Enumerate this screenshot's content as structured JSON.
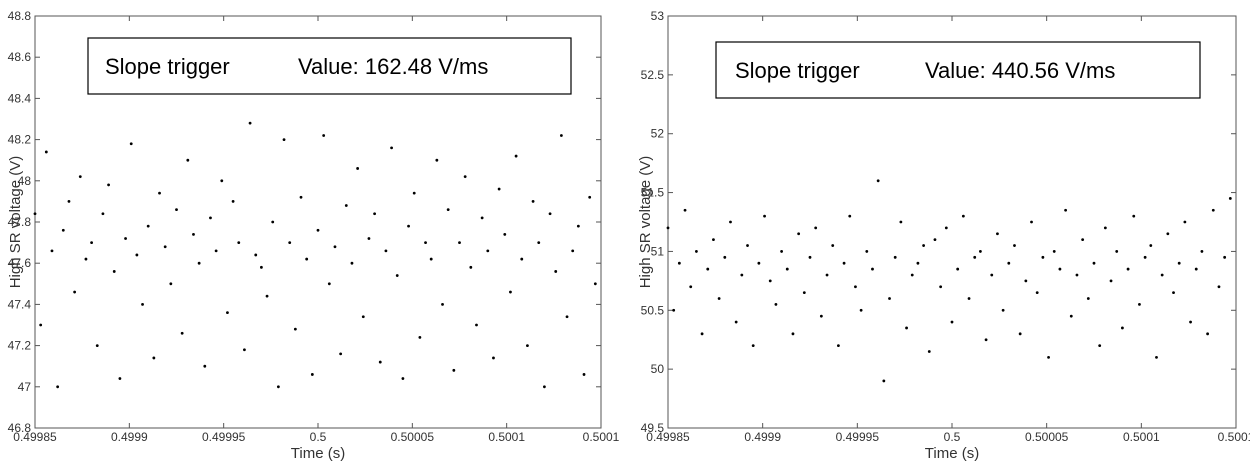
{
  "chart_data": [
    {
      "type": "scatter",
      "xlabel": "Time (s)",
      "ylabel": "High SR voltage (V)",
      "annotations": [
        "Slope trigger",
        "Value: 162.48 V/ms"
      ],
      "color": "#000000",
      "grid": false,
      "xlim": [
        0.49985,
        0.50015
      ],
      "xticks": [
        0.49985,
        0.4999,
        0.49995,
        0.5,
        0.50005,
        0.5001,
        {
          "value": 0.50015,
          "label": "0.5001"
        }
      ],
      "ylim": [
        46.8,
        48.8
      ],
      "yticks": [
        46.8,
        47,
        47.2,
        47.4,
        47.6,
        47.8,
        48,
        48.2,
        48.4,
        48.6,
        48.8
      ],
      "x": [
        0.49985,
        0.499853,
        0.499856,
        0.499859,
        0.499862,
        0.499865,
        0.499868,
        0.499871,
        0.499874,
        0.499877,
        0.49988,
        0.499883,
        0.499886,
        0.499889,
        0.499892,
        0.499895,
        0.499898,
        0.499901,
        0.499904,
        0.499907,
        0.49991,
        0.499913,
        0.499916,
        0.499919,
        0.499922,
        0.499925,
        0.499928,
        0.499931,
        0.499934,
        0.499937,
        0.49994,
        0.499943,
        0.499946,
        0.499949,
        0.499952,
        0.499955,
        0.499958,
        0.499961,
        0.499964,
        0.499967,
        0.49997,
        0.499973,
        0.499976,
        0.499979,
        0.499982,
        0.499985,
        0.499988,
        0.499991,
        0.499994,
        0.499997,
        0.5,
        0.500003,
        0.500006,
        0.500009,
        0.500012,
        0.500015,
        0.500018,
        0.500021,
        0.500024,
        0.500027,
        0.50003,
        0.500033,
        0.500036,
        0.500039,
        0.500042,
        0.500045,
        0.500048,
        0.500051,
        0.500054,
        0.500057,
        0.50006,
        0.500063,
        0.500066,
        0.500069,
        0.500072,
        0.500075,
        0.500078,
        0.500081,
        0.500084,
        0.500087,
        0.50009,
        0.500093,
        0.500096,
        0.500099,
        0.500102,
        0.500105,
        0.500108,
        0.500111,
        0.500114,
        0.500117,
        0.50012,
        0.500123,
        0.500126,
        0.500129,
        0.500132,
        0.500135,
        0.500138,
        0.500141,
        0.500144,
        0.500147
      ],
      "values": [
        47.84,
        47.3,
        48.14,
        47.66,
        47.0,
        47.76,
        47.9,
        47.46,
        48.02,
        47.62,
        47.7,
        47.2,
        47.84,
        47.98,
        47.56,
        47.04,
        47.72,
        48.18,
        47.64,
        47.4,
        47.78,
        47.14,
        47.94,
        47.68,
        47.5,
        47.86,
        47.26,
        48.1,
        47.74,
        47.6,
        47.1,
        47.82,
        47.66,
        48.0,
        47.36,
        47.9,
        47.7,
        47.18,
        48.28,
        47.64,
        47.58,
        47.44,
        47.8,
        47.0,
        48.2,
        47.7,
        47.28,
        47.92,
        47.62,
        47.06,
        47.76,
        48.22,
        47.5,
        47.68,
        47.16,
        47.88,
        47.6,
        48.06,
        47.34,
        47.72,
        47.84,
        47.12,
        47.66,
        48.16,
        47.54,
        47.04,
        47.78,
        47.94,
        47.24,
        47.7,
        47.62,
        48.1,
        47.4,
        47.86,
        47.08,
        47.7,
        48.02,
        47.58,
        47.3,
        47.82,
        47.66,
        47.14,
        47.96,
        47.74,
        47.46,
        48.12,
        47.62,
        47.2,
        47.9,
        47.7,
        47.0,
        47.84,
        47.56,
        48.22,
        47.34,
        47.66,
        47.78,
        47.06,
        47.92,
        47.5
      ]
    },
    {
      "type": "scatter",
      "xlabel": "Time (s)",
      "ylabel": "High SR voltage (V)",
      "annotations": [
        "Slope trigger",
        "Value: 440.56 V/ms"
      ],
      "color": "#000000",
      "grid": false,
      "xlim": [
        0.49985,
        0.50015
      ],
      "xticks": [
        0.49985,
        0.4999,
        0.49995,
        0.5,
        0.50005,
        0.5001,
        {
          "value": 0.50015,
          "label": "0.5001"
        }
      ],
      "ylim": [
        49.5,
        53
      ],
      "yticks": [
        49.5,
        50,
        50.5,
        51,
        51.5,
        52,
        52.5,
        53
      ],
      "x": [
        0.49985,
        0.499853,
        0.499856,
        0.499859,
        0.499862,
        0.499865,
        0.499868,
        0.499871,
        0.499874,
        0.499877,
        0.49988,
        0.499883,
        0.499886,
        0.499889,
        0.499892,
        0.499895,
        0.499898,
        0.499901,
        0.499904,
        0.499907,
        0.49991,
        0.499913,
        0.499916,
        0.499919,
        0.499922,
        0.499925,
        0.499928,
        0.499931,
        0.499934,
        0.499937,
        0.49994,
        0.499943,
        0.499946,
        0.499949,
        0.499952,
        0.499955,
        0.499958,
        0.499961,
        0.499964,
        0.499967,
        0.49997,
        0.499973,
        0.499976,
        0.499979,
        0.499982,
        0.499985,
        0.499988,
        0.499991,
        0.499994,
        0.499997,
        0.5,
        0.500003,
        0.500006,
        0.500009,
        0.500012,
        0.500015,
        0.500018,
        0.500021,
        0.500024,
        0.500027,
        0.50003,
        0.500033,
        0.500036,
        0.500039,
        0.500042,
        0.500045,
        0.500048,
        0.500051,
        0.500054,
        0.500057,
        0.50006,
        0.500063,
        0.500066,
        0.500069,
        0.500072,
        0.500075,
        0.500078,
        0.500081,
        0.500084,
        0.500087,
        0.50009,
        0.500093,
        0.500096,
        0.500099,
        0.500102,
        0.500105,
        0.500108,
        0.500111,
        0.500114,
        0.500117,
        0.50012,
        0.500123,
        0.500126,
        0.500129,
        0.500132,
        0.500135,
        0.500138,
        0.500141,
        0.500144,
        0.500147
      ],
      "values": [
        51.2,
        50.5,
        50.9,
        51.35,
        50.7,
        51.0,
        50.3,
        50.85,
        51.1,
        50.6,
        50.95,
        51.25,
        50.4,
        50.8,
        51.05,
        50.2,
        50.9,
        51.3,
        50.75,
        50.55,
        51.0,
        50.85,
        50.3,
        51.15,
        50.65,
        50.95,
        51.2,
        50.45,
        50.8,
        51.05,
        50.2,
        50.9,
        51.3,
        50.7,
        50.5,
        51.0,
        50.85,
        51.6,
        49.9,
        50.6,
        50.95,
        51.25,
        50.35,
        50.8,
        50.9,
        51.05,
        50.15,
        51.1,
        50.7,
        51.2,
        50.4,
        50.85,
        51.3,
        50.6,
        50.95,
        51.0,
        50.25,
        50.8,
        51.15,
        50.5,
        50.9,
        51.05,
        50.3,
        50.75,
        51.25,
        50.65,
        50.95,
        50.1,
        51.0,
        50.85,
        51.35,
        50.45,
        50.8,
        51.1,
        50.6,
        50.9,
        50.2,
        51.2,
        50.75,
        51.0,
        50.35,
        50.85,
        51.3,
        50.55,
        50.95,
        51.05,
        50.1,
        50.8,
        51.15,
        50.65,
        50.9,
        51.25,
        50.4,
        50.85,
        51.0,
        50.3,
        51.35,
        50.7,
        50.95,
        51.45
      ]
    }
  ]
}
